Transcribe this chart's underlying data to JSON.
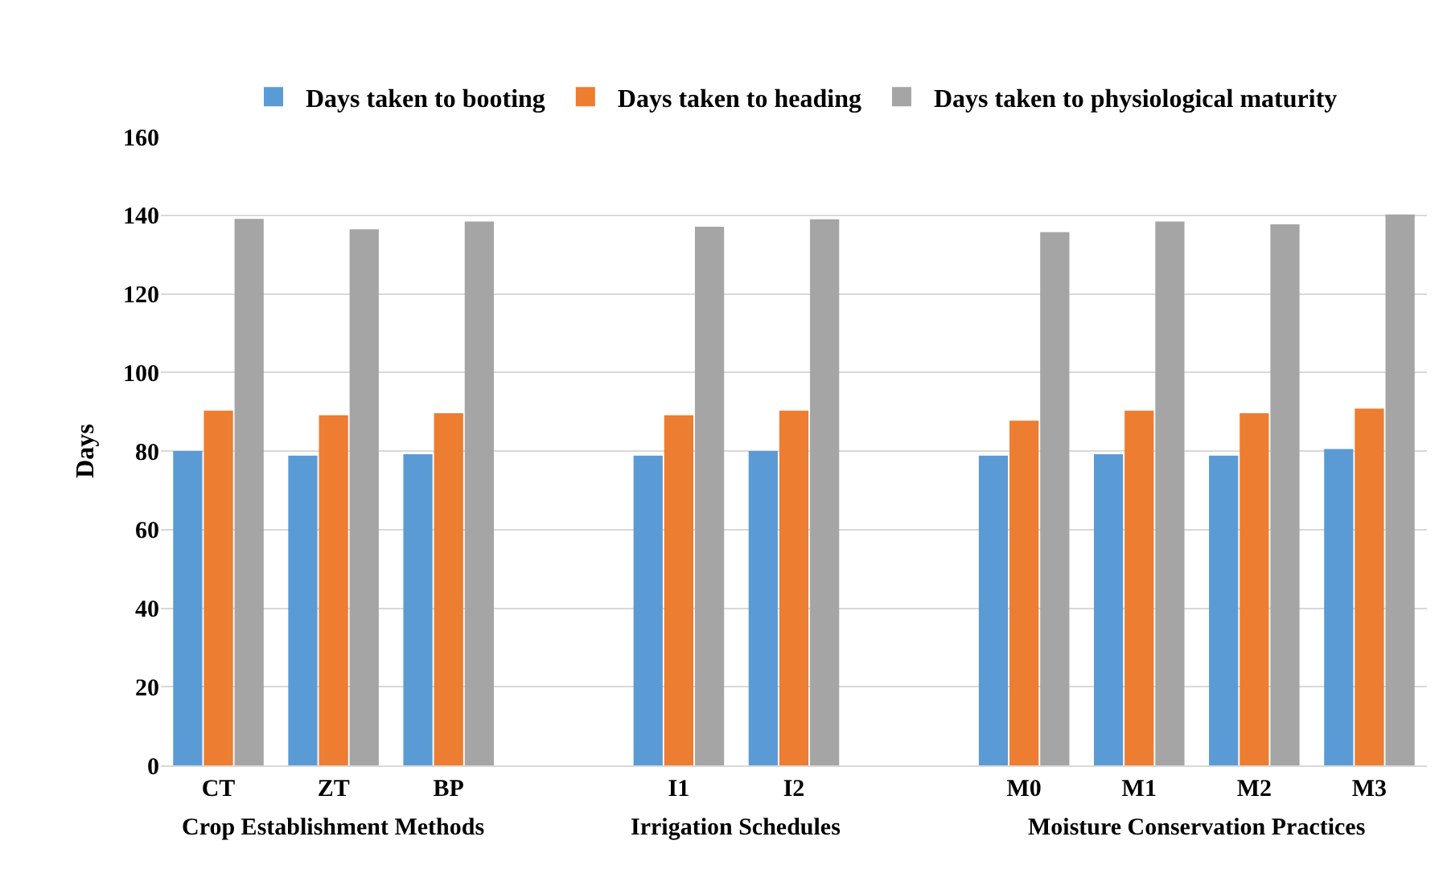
{
  "chart_data": {
    "type": "bar",
    "ylabel": "Days",
    "categories": [
      "CT",
      "ZT",
      "BP",
      null,
      "I1",
      "I2",
      null,
      "M0",
      "M1",
      "M2",
      "M3"
    ],
    "series": [
      {
        "name": "Days taken to booting",
        "color": "#5b9bd5",
        "values": [
          80,
          78.8,
          79.2,
          null,
          78.8,
          80,
          null,
          78.8,
          79.2,
          78.8,
          80.5
        ]
      },
      {
        "name": "Days taken to heading",
        "color": "#ed7d31",
        "values": [
          90.3,
          89.1,
          89.6,
          null,
          89.1,
          90.3,
          null,
          87.7,
          90.3,
          89.6,
          90.8
        ]
      },
      {
        "name": "Days taken to physiological maturity",
        "color": "#a5a5a5",
        "values": [
          139.1,
          136.4,
          138.4,
          null,
          137.1,
          139,
          null,
          135.7,
          138.4,
          137.7,
          140.2
        ]
      }
    ],
    "ylim": [
      0,
      160
    ],
    "yticks": [
      0,
      20,
      40,
      60,
      80,
      100,
      120,
      140,
      160
    ],
    "grid": "y",
    "legend": "top",
    "annotations": [
      "Crop Establishment Methods",
      "Irrigation Schedules",
      "Moisture Conservation Practices"
    ]
  }
}
